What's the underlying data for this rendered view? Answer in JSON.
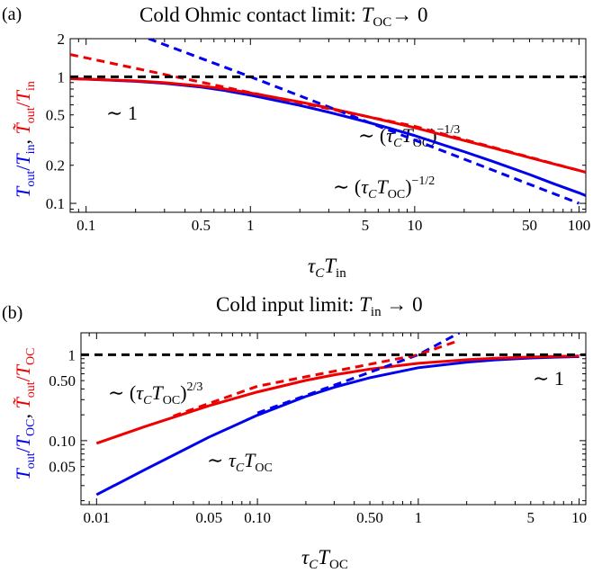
{
  "chart_data": [
    {
      "panel_label": "(a)",
      "type": "line",
      "title": "Cold Ohmic contact limit: T_OC→ 0",
      "xlabel": "τ_C T_in",
      "ylabel": "T_out/T_in, T̃_out/T̃_in",
      "xscale": "log",
      "yscale": "log",
      "xlim": [
        0.08,
        110
      ],
      "ylim": [
        0.085,
        2.0
      ],
      "grid": false,
      "x_ticks": [
        0.1,
        0.5,
        1,
        5,
        10,
        50,
        100
      ],
      "x_tick_labels": [
        "0.1",
        "0.5",
        "1",
        "5",
        "10",
        "50",
        "100"
      ],
      "y_ticks": [
        0.1,
        0.2,
        0.5,
        1,
        2
      ],
      "y_tick_labels": [
        "0.1",
        "0.2",
        "0.5",
        "1",
        "2"
      ],
      "annotations": [
        "∼ 1",
        "∼ (τ_C T_OC)^−1/3",
        "∼ (τ_C T_OC)^−1/2"
      ],
      "series": [
        {
          "color": "#0000ee",
          "style": "solid",
          "x": [
            0.08,
            0.1,
            0.2,
            0.3,
            0.5,
            0.7,
            1,
            2,
            3,
            5,
            7,
            10,
            20,
            30,
            50,
            70,
            100,
            110
          ],
          "y": [
            0.966,
            0.958,
            0.922,
            0.888,
            0.829,
            0.778,
            0.716,
            0.594,
            0.525,
            0.443,
            0.393,
            0.343,
            0.256,
            0.214,
            0.169,
            0.143,
            0.121,
            0.115
          ]
        },
        {
          "color": "#ee0000",
          "style": "solid",
          "x": [
            0.08,
            0.1,
            0.2,
            0.3,
            0.5,
            0.7,
            1,
            2,
            3,
            5,
            7,
            10,
            20,
            30,
            50,
            70,
            100,
            110
          ],
          "y": [
            0.967,
            0.96,
            0.928,
            0.898,
            0.846,
            0.801,
            0.745,
            0.632,
            0.567,
            0.489,
            0.442,
            0.396,
            0.314,
            0.274,
            0.23,
            0.205,
            0.182,
            0.176
          ]
        },
        {
          "color": "#0000ee",
          "style": "dashed",
          "x": [
            0.24,
            1,
            10,
            100
          ],
          "y": [
            2.0,
            1.0,
            0.3162,
            0.1
          ]
        },
        {
          "color": "#ee0000",
          "style": "dashed",
          "x": [
            0.08,
            1,
            10,
            100,
            110
          ],
          "y": [
            1.5,
            0.75,
            0.406,
            0.182,
            0.176
          ]
        },
        {
          "color": "#000000",
          "style": "dashed",
          "x": [
            0.08,
            110
          ],
          "y": [
            1,
            1
          ]
        }
      ]
    },
    {
      "panel_label": "(b)",
      "type": "line",
      "title": "Cold input limit: T_in → 0",
      "xlabel": "τ_C T_OC",
      "ylabel": "T_out/T_OC, T̃_out/T̃_OC",
      "xscale": "log",
      "yscale": "log",
      "xlim": [
        0.008,
        11
      ],
      "ylim": [
        0.018,
        1.8
      ],
      "grid": false,
      "x_ticks": [
        0.01,
        0.05,
        0.1,
        0.5,
        1,
        5,
        10
      ],
      "x_tick_labels": [
        "0.01",
        "0.05",
        "0.10",
        "0.50",
        "1",
        "5",
        "10"
      ],
      "y_ticks": [
        0.05,
        0.1,
        0.5,
        1
      ],
      "y_tick_labels": [
        "0.05",
        "0.10",
        "0.50",
        "1"
      ],
      "annotations": [
        "∼ (τ_C T_OC)^2/3",
        "∼ τ_C T_OC",
        "∼ 1"
      ],
      "series": [
        {
          "color": "#0000ee",
          "style": "solid",
          "x": [
            0.01,
            0.02,
            0.05,
            0.1,
            0.2,
            0.3,
            0.5,
            1,
            2,
            3,
            5,
            7,
            10
          ],
          "y": [
            0.0235,
            0.046,
            0.11,
            0.198,
            0.327,
            0.418,
            0.54,
            0.706,
            0.82,
            0.87,
            0.915,
            0.935,
            0.951
          ]
        },
        {
          "color": "#ee0000",
          "style": "solid",
          "x": [
            0.01,
            0.02,
            0.05,
            0.1,
            0.2,
            0.3,
            0.5,
            1,
            2,
            3,
            5,
            7,
            10
          ],
          "y": [
            0.0931,
            0.146,
            0.255,
            0.369,
            0.503,
            0.583,
            0.681,
            0.795,
            0.875,
            0.91,
            0.942,
            0.956,
            0.968
          ]
        },
        {
          "color": "#0000ee",
          "style": "dashed",
          "x": [
            0.1,
            1,
            1.8
          ],
          "y": [
            0.21,
            1.0,
            1.8
          ]
        },
        {
          "color": "#ee0000",
          "style": "dashed",
          "x": [
            0.03,
            0.1,
            1,
            1.8
          ],
          "y": [
            0.193,
            0.43,
            1.0,
            1.47
          ]
        },
        {
          "color": "#000000",
          "style": "dashed",
          "x": [
            0.008,
            11
          ],
          "y": [
            1,
            1
          ]
        }
      ]
    }
  ]
}
